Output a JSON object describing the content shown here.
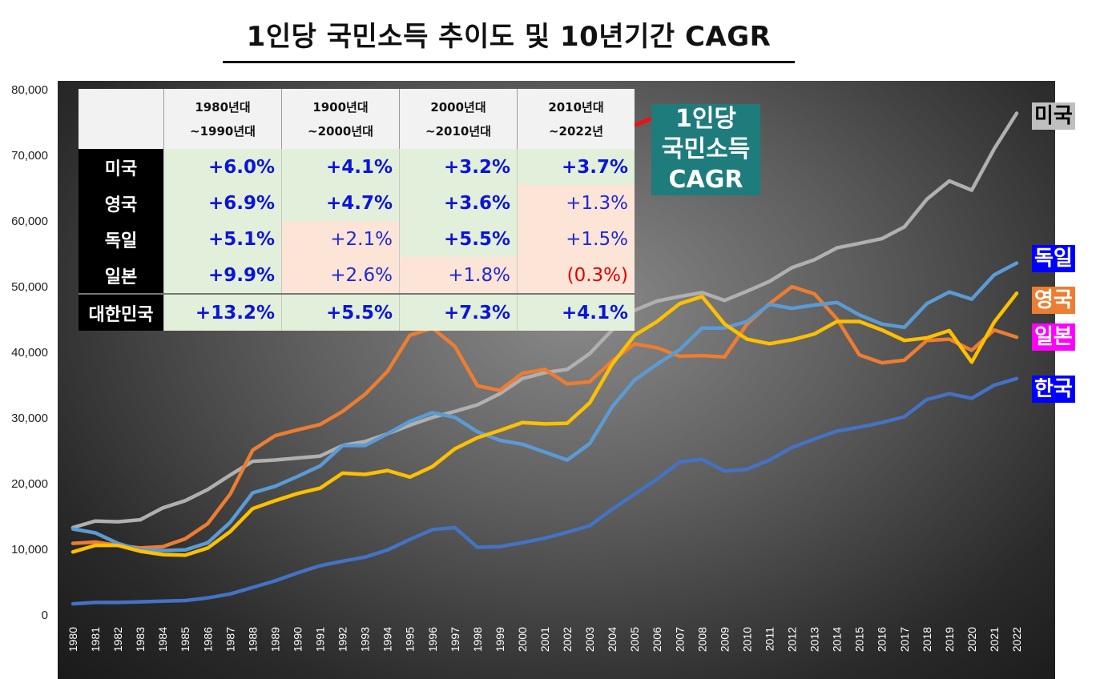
{
  "title": "1인당 국민소득 추이도 및 10년기간 CAGR",
  "colors": {
    "미국": "#b0b0b0",
    "영국": "#ed7d31",
    "독일": "#5b9bd5",
    "일본": "#ffc000",
    "한국": "#4472c4"
  },
  "end_labels": [
    {
      "text": "미국",
      "bg": "#bfbfbf",
      "fg": "#000000"
    },
    {
      "text": "독일",
      "bg": "#0000ff",
      "fg": "#ffffff"
    },
    {
      "text": "영국",
      "bg": "#ed7d31",
      "fg": "#ffffff"
    },
    {
      "text": "일본",
      "bg": "#ff00ff",
      "fg": "#ffffff"
    },
    {
      "text": "한국",
      "bg": "#0000ff",
      "fg": "#ffffff"
    }
  ],
  "annotation": {
    "line1": "1인당",
    "line2": "국민소득",
    "line3": "CAGR"
  },
  "table": {
    "headers": [
      {
        "l1": "1980년대",
        "l2": "~1990년대"
      },
      {
        "l1": "1900년대",
        "l2": "~2000년대"
      },
      {
        "l1": "2000년대",
        "l2": "~2010년대"
      },
      {
        "l1": "2010년대",
        "l2": "~2022년"
      }
    ],
    "rows": [
      {
        "name": "미국",
        "cells": [
          "+6.0%",
          "+4.1%",
          "+3.2%",
          "+3.7%"
        ]
      },
      {
        "name": "영국",
        "cells": [
          "+6.9%",
          "+4.7%",
          "+3.6%",
          "+1.3%"
        ]
      },
      {
        "name": "독일",
        "cells": [
          "+5.1%",
          "+2.1%",
          "+5.5%",
          "+1.5%"
        ]
      },
      {
        "name": "일본",
        "cells": [
          "+9.9%",
          "+2.6%",
          "+1.8%",
          "(0.3%)"
        ]
      },
      {
        "name": "대한민국",
        "cells": [
          "+13.2%",
          "+5.5%",
          "+7.3%",
          "+4.1%"
        ]
      }
    ]
  },
  "chart_data": {
    "type": "line",
    "title": "1인당 국민소득 추이도 및 10년기간 CAGR",
    "ylim": [
      0,
      80000
    ],
    "yticks": [
      "0",
      "10,000",
      "20,000",
      "30,000",
      "40,000",
      "50,000",
      "60,000",
      "70,000",
      "80,000"
    ],
    "x": [
      "1980",
      "1981",
      "1982",
      "1983",
      "1984",
      "1985",
      "1986",
      "1987",
      "1988",
      "1989",
      "1990",
      "1991",
      "1992",
      "1993",
      "1994",
      "1995",
      "1996",
      "1997",
      "1998",
      "1999",
      "2000",
      "2001",
      "2002",
      "2003",
      "2004",
      "2005",
      "2006",
      "2007",
      "2008",
      "2009",
      "2010",
      "2011",
      "2012",
      "2013",
      "2014",
      "2015",
      "2016",
      "2017",
      "2018",
      "2019",
      "2020",
      "2021",
      "2022"
    ],
    "grid": false,
    "series": [
      {
        "name": "미국",
        "values": [
          13300,
          14300,
          14200,
          14500,
          16300,
          17400,
          19100,
          21300,
          23400,
          23600,
          23900,
          24200,
          25800,
          26400,
          27600,
          28900,
          30100,
          31000,
          32000,
          33700,
          36000,
          36900,
          37400,
          39800,
          43400,
          46400,
          47800,
          48500,
          49100,
          47900,
          49300,
          50800,
          52900,
          54100,
          55900,
          56600,
          57300,
          59100,
          63300,
          66100,
          64700,
          71000,
          76400
        ]
      },
      {
        "name": "영국",
        "values": [
          10900,
          11100,
          10600,
          10200,
          10400,
          11600,
          13900,
          18400,
          25100,
          27300,
          28200,
          29000,
          31000,
          33600,
          37100,
          42600,
          43700,
          40900,
          34900,
          34200,
          36800,
          37400,
          35200,
          35500,
          38700,
          41300,
          40700,
          39400,
          39500,
          39300,
          44300,
          47400,
          50000,
          48900,
          45100,
          39600,
          38400,
          38800,
          41800,
          42000,
          40300,
          43400,
          42300
        ]
      },
      {
        "name": "독일",
        "values": [
          13100,
          12500,
          10900,
          9900,
          9800,
          9900,
          11000,
          14100,
          18600,
          19600,
          21100,
          22700,
          25800,
          25800,
          27600,
          29500,
          30800,
          30100,
          27900,
          26600,
          26000,
          24800,
          23600,
          26100,
          31700,
          35800,
          38200,
          40400,
          43700,
          43700,
          44700,
          47300,
          46700,
          47200,
          47600,
          45700,
          44300,
          43800,
          47400,
          49200,
          48100,
          51800,
          53600
        ]
      },
      {
        "name": "일본",
        "values": [
          9600,
          10600,
          10600,
          9700,
          9200,
          9100,
          10200,
          12700,
          16200,
          17400,
          18500,
          19300,
          21600,
          21400,
          22000,
          21000,
          22600,
          25300,
          27000,
          28100,
          29300,
          29100,
          29200,
          32300,
          38200,
          42600,
          44700,
          47400,
          48500,
          44300,
          42000,
          41300,
          41900,
          42800,
          44700,
          44700,
          43400,
          41800,
          42200,
          43300,
          38500,
          44600,
          49000
        ]
      },
      {
        "name": "한국",
        "values": [
          1700,
          1900,
          1900,
          2000,
          2100,
          2200,
          2600,
          3200,
          4200,
          5200,
          6400,
          7500,
          8200,
          8800,
          9900,
          11500,
          13000,
          13300,
          10300,
          10400,
          11000,
          11700,
          12600,
          13600,
          16100,
          18400,
          20700,
          23300,
          23700,
          21900,
          22200,
          23600,
          25500,
          26800,
          28000,
          28600,
          29300,
          30200,
          32800,
          33700,
          33000,
          35000,
          36000
        ]
      }
    ]
  }
}
